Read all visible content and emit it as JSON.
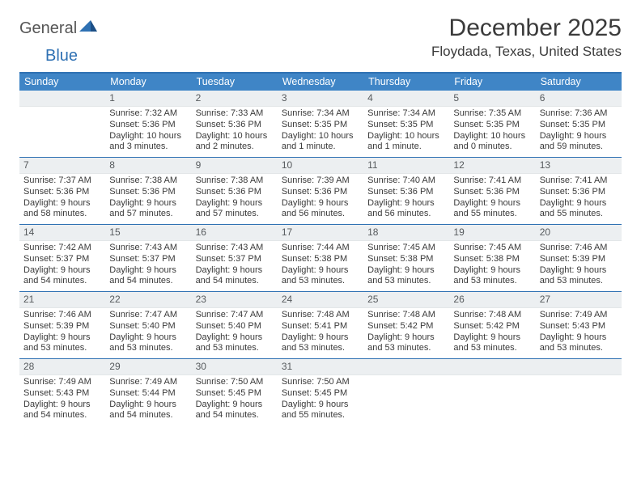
{
  "logo": {
    "word1": "General",
    "word2": "Blue"
  },
  "title": "December 2025",
  "location": "Floydada, Texas, United States",
  "colors": {
    "header_bg": "#3f85c6",
    "rule": "#2f71b3",
    "daynum_bg": "#eceff1",
    "text": "#3a3a3a",
    "logo_blue": "#2f71b3"
  },
  "dow": [
    "Sunday",
    "Monday",
    "Tuesday",
    "Wednesday",
    "Thursday",
    "Friday",
    "Saturday"
  ],
  "weeks": [
    [
      {
        "n": "",
        "sr": "",
        "ss": "",
        "dl": ""
      },
      {
        "n": "1",
        "sr": "Sunrise: 7:32 AM",
        "ss": "Sunset: 5:36 PM",
        "dl": "Daylight: 10 hours and 3 minutes."
      },
      {
        "n": "2",
        "sr": "Sunrise: 7:33 AM",
        "ss": "Sunset: 5:36 PM",
        "dl": "Daylight: 10 hours and 2 minutes."
      },
      {
        "n": "3",
        "sr": "Sunrise: 7:34 AM",
        "ss": "Sunset: 5:35 PM",
        "dl": "Daylight: 10 hours and 1 minute."
      },
      {
        "n": "4",
        "sr": "Sunrise: 7:34 AM",
        "ss": "Sunset: 5:35 PM",
        "dl": "Daylight: 10 hours and 1 minute."
      },
      {
        "n": "5",
        "sr": "Sunrise: 7:35 AM",
        "ss": "Sunset: 5:35 PM",
        "dl": "Daylight: 10 hours and 0 minutes."
      },
      {
        "n": "6",
        "sr": "Sunrise: 7:36 AM",
        "ss": "Sunset: 5:35 PM",
        "dl": "Daylight: 9 hours and 59 minutes."
      }
    ],
    [
      {
        "n": "7",
        "sr": "Sunrise: 7:37 AM",
        "ss": "Sunset: 5:36 PM",
        "dl": "Daylight: 9 hours and 58 minutes."
      },
      {
        "n": "8",
        "sr": "Sunrise: 7:38 AM",
        "ss": "Sunset: 5:36 PM",
        "dl": "Daylight: 9 hours and 57 minutes."
      },
      {
        "n": "9",
        "sr": "Sunrise: 7:38 AM",
        "ss": "Sunset: 5:36 PM",
        "dl": "Daylight: 9 hours and 57 minutes."
      },
      {
        "n": "10",
        "sr": "Sunrise: 7:39 AM",
        "ss": "Sunset: 5:36 PM",
        "dl": "Daylight: 9 hours and 56 minutes."
      },
      {
        "n": "11",
        "sr": "Sunrise: 7:40 AM",
        "ss": "Sunset: 5:36 PM",
        "dl": "Daylight: 9 hours and 56 minutes."
      },
      {
        "n": "12",
        "sr": "Sunrise: 7:41 AM",
        "ss": "Sunset: 5:36 PM",
        "dl": "Daylight: 9 hours and 55 minutes."
      },
      {
        "n": "13",
        "sr": "Sunrise: 7:41 AM",
        "ss": "Sunset: 5:36 PM",
        "dl": "Daylight: 9 hours and 55 minutes."
      }
    ],
    [
      {
        "n": "14",
        "sr": "Sunrise: 7:42 AM",
        "ss": "Sunset: 5:37 PM",
        "dl": "Daylight: 9 hours and 54 minutes."
      },
      {
        "n": "15",
        "sr": "Sunrise: 7:43 AM",
        "ss": "Sunset: 5:37 PM",
        "dl": "Daylight: 9 hours and 54 minutes."
      },
      {
        "n": "16",
        "sr": "Sunrise: 7:43 AM",
        "ss": "Sunset: 5:37 PM",
        "dl": "Daylight: 9 hours and 54 minutes."
      },
      {
        "n": "17",
        "sr": "Sunrise: 7:44 AM",
        "ss": "Sunset: 5:38 PM",
        "dl": "Daylight: 9 hours and 53 minutes."
      },
      {
        "n": "18",
        "sr": "Sunrise: 7:45 AM",
        "ss": "Sunset: 5:38 PM",
        "dl": "Daylight: 9 hours and 53 minutes."
      },
      {
        "n": "19",
        "sr": "Sunrise: 7:45 AM",
        "ss": "Sunset: 5:38 PM",
        "dl": "Daylight: 9 hours and 53 minutes."
      },
      {
        "n": "20",
        "sr": "Sunrise: 7:46 AM",
        "ss": "Sunset: 5:39 PM",
        "dl": "Daylight: 9 hours and 53 minutes."
      }
    ],
    [
      {
        "n": "21",
        "sr": "Sunrise: 7:46 AM",
        "ss": "Sunset: 5:39 PM",
        "dl": "Daylight: 9 hours and 53 minutes."
      },
      {
        "n": "22",
        "sr": "Sunrise: 7:47 AM",
        "ss": "Sunset: 5:40 PM",
        "dl": "Daylight: 9 hours and 53 minutes."
      },
      {
        "n": "23",
        "sr": "Sunrise: 7:47 AM",
        "ss": "Sunset: 5:40 PM",
        "dl": "Daylight: 9 hours and 53 minutes."
      },
      {
        "n": "24",
        "sr": "Sunrise: 7:48 AM",
        "ss": "Sunset: 5:41 PM",
        "dl": "Daylight: 9 hours and 53 minutes."
      },
      {
        "n": "25",
        "sr": "Sunrise: 7:48 AM",
        "ss": "Sunset: 5:42 PM",
        "dl": "Daylight: 9 hours and 53 minutes."
      },
      {
        "n": "26",
        "sr": "Sunrise: 7:48 AM",
        "ss": "Sunset: 5:42 PM",
        "dl": "Daylight: 9 hours and 53 minutes."
      },
      {
        "n": "27",
        "sr": "Sunrise: 7:49 AM",
        "ss": "Sunset: 5:43 PM",
        "dl": "Daylight: 9 hours and 53 minutes."
      }
    ],
    [
      {
        "n": "28",
        "sr": "Sunrise: 7:49 AM",
        "ss": "Sunset: 5:43 PM",
        "dl": "Daylight: 9 hours and 54 minutes."
      },
      {
        "n": "29",
        "sr": "Sunrise: 7:49 AM",
        "ss": "Sunset: 5:44 PM",
        "dl": "Daylight: 9 hours and 54 minutes."
      },
      {
        "n": "30",
        "sr": "Sunrise: 7:50 AM",
        "ss": "Sunset: 5:45 PM",
        "dl": "Daylight: 9 hours and 54 minutes."
      },
      {
        "n": "31",
        "sr": "Sunrise: 7:50 AM",
        "ss": "Sunset: 5:45 PM",
        "dl": "Daylight: 9 hours and 55 minutes."
      },
      {
        "n": "",
        "sr": "",
        "ss": "",
        "dl": ""
      },
      {
        "n": "",
        "sr": "",
        "ss": "",
        "dl": ""
      },
      {
        "n": "",
        "sr": "",
        "ss": "",
        "dl": ""
      }
    ]
  ]
}
